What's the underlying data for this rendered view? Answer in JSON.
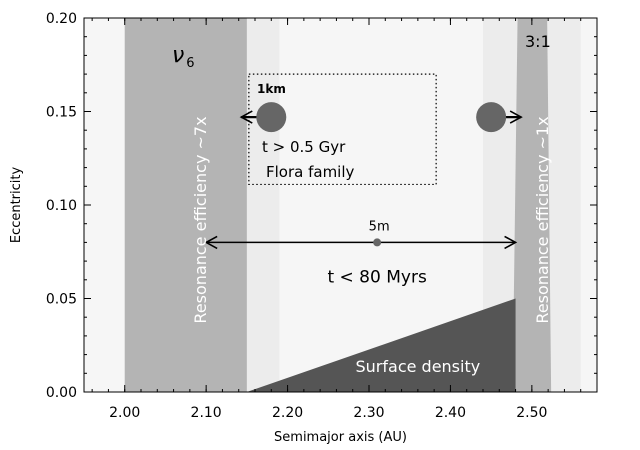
{
  "x_axis": {
    "label": "Semimajor axis (AU)",
    "range": [
      1.95,
      2.58
    ],
    "ticks": [
      {
        "value": 2.0,
        "label": "2.00"
      },
      {
        "value": 2.1,
        "label": "2.10"
      },
      {
        "value": 2.2,
        "label": "2.20"
      },
      {
        "value": 2.3,
        "label": "2.30"
      },
      {
        "value": 2.4,
        "label": "2.40"
      },
      {
        "value": 2.5,
        "label": "2.50"
      }
    ]
  },
  "y_axis": {
    "label": "Eccentricity",
    "range": [
      0.0,
      0.2
    ],
    "ticks": [
      {
        "value": 0.0,
        "label": "0.00"
      },
      {
        "value": 0.05,
        "label": "0.05"
      },
      {
        "value": 0.1,
        "label": "0.10"
      },
      {
        "value": 0.15,
        "label": "0.15"
      },
      {
        "value": 0.2,
        "label": "0.20"
      }
    ]
  },
  "regions": {
    "nu6_band": {
      "a_min": 2.0,
      "a_max": 2.15,
      "color": "#b4b4b4"
    },
    "nu6_halo": {
      "a_min": 2.15,
      "a_max": 2.19,
      "color": "#ececec"
    },
    "res31_band": {
      "a_min": 2.48,
      "a_max": 2.52,
      "color": "#b4b4b4"
    },
    "res31_halo": {
      "a_min": 2.44,
      "a_max": 2.56,
      "color": "#ececec"
    },
    "surface_density": {
      "polygon": [
        [
          2.15,
          0.0
        ],
        [
          2.48,
          0.05
        ],
        [
          2.48,
          0.0
        ]
      ],
      "color": "#555555"
    }
  },
  "labels": {
    "nu6_symbol": "ν",
    "nu6_subscript": "6",
    "res31": "3:1",
    "left_efficiency": "Resonance efficiency ~7x",
    "right_efficiency": "Resonance efficiency ~1x",
    "big_asteroid_size": "1km",
    "big_asteroid_time": "t > 0.5 Gyr",
    "family": "Flora family",
    "small_asteroid_size": "5m",
    "small_asteroid_time": "t < 80 Myrs",
    "surface_density": "Surface density"
  },
  "markers": {
    "big_body_left": {
      "a": 2.18,
      "e": 0.147
    },
    "big_body_right": {
      "a": 2.45,
      "e": 0.147
    },
    "small_body": {
      "a": 2.31,
      "e": 0.08
    },
    "arrow_5m": {
      "a_from": 2.1,
      "a_to": 2.48,
      "e": 0.08
    },
    "family_box": {
      "a_min": 2.15,
      "a_max": 2.38,
      "e_min": 0.111,
      "e_max": 0.17
    }
  },
  "colors": {
    "band": "#b4b4b4",
    "halo": "#ececec",
    "body": "#666666",
    "dark": "#555555"
  }
}
